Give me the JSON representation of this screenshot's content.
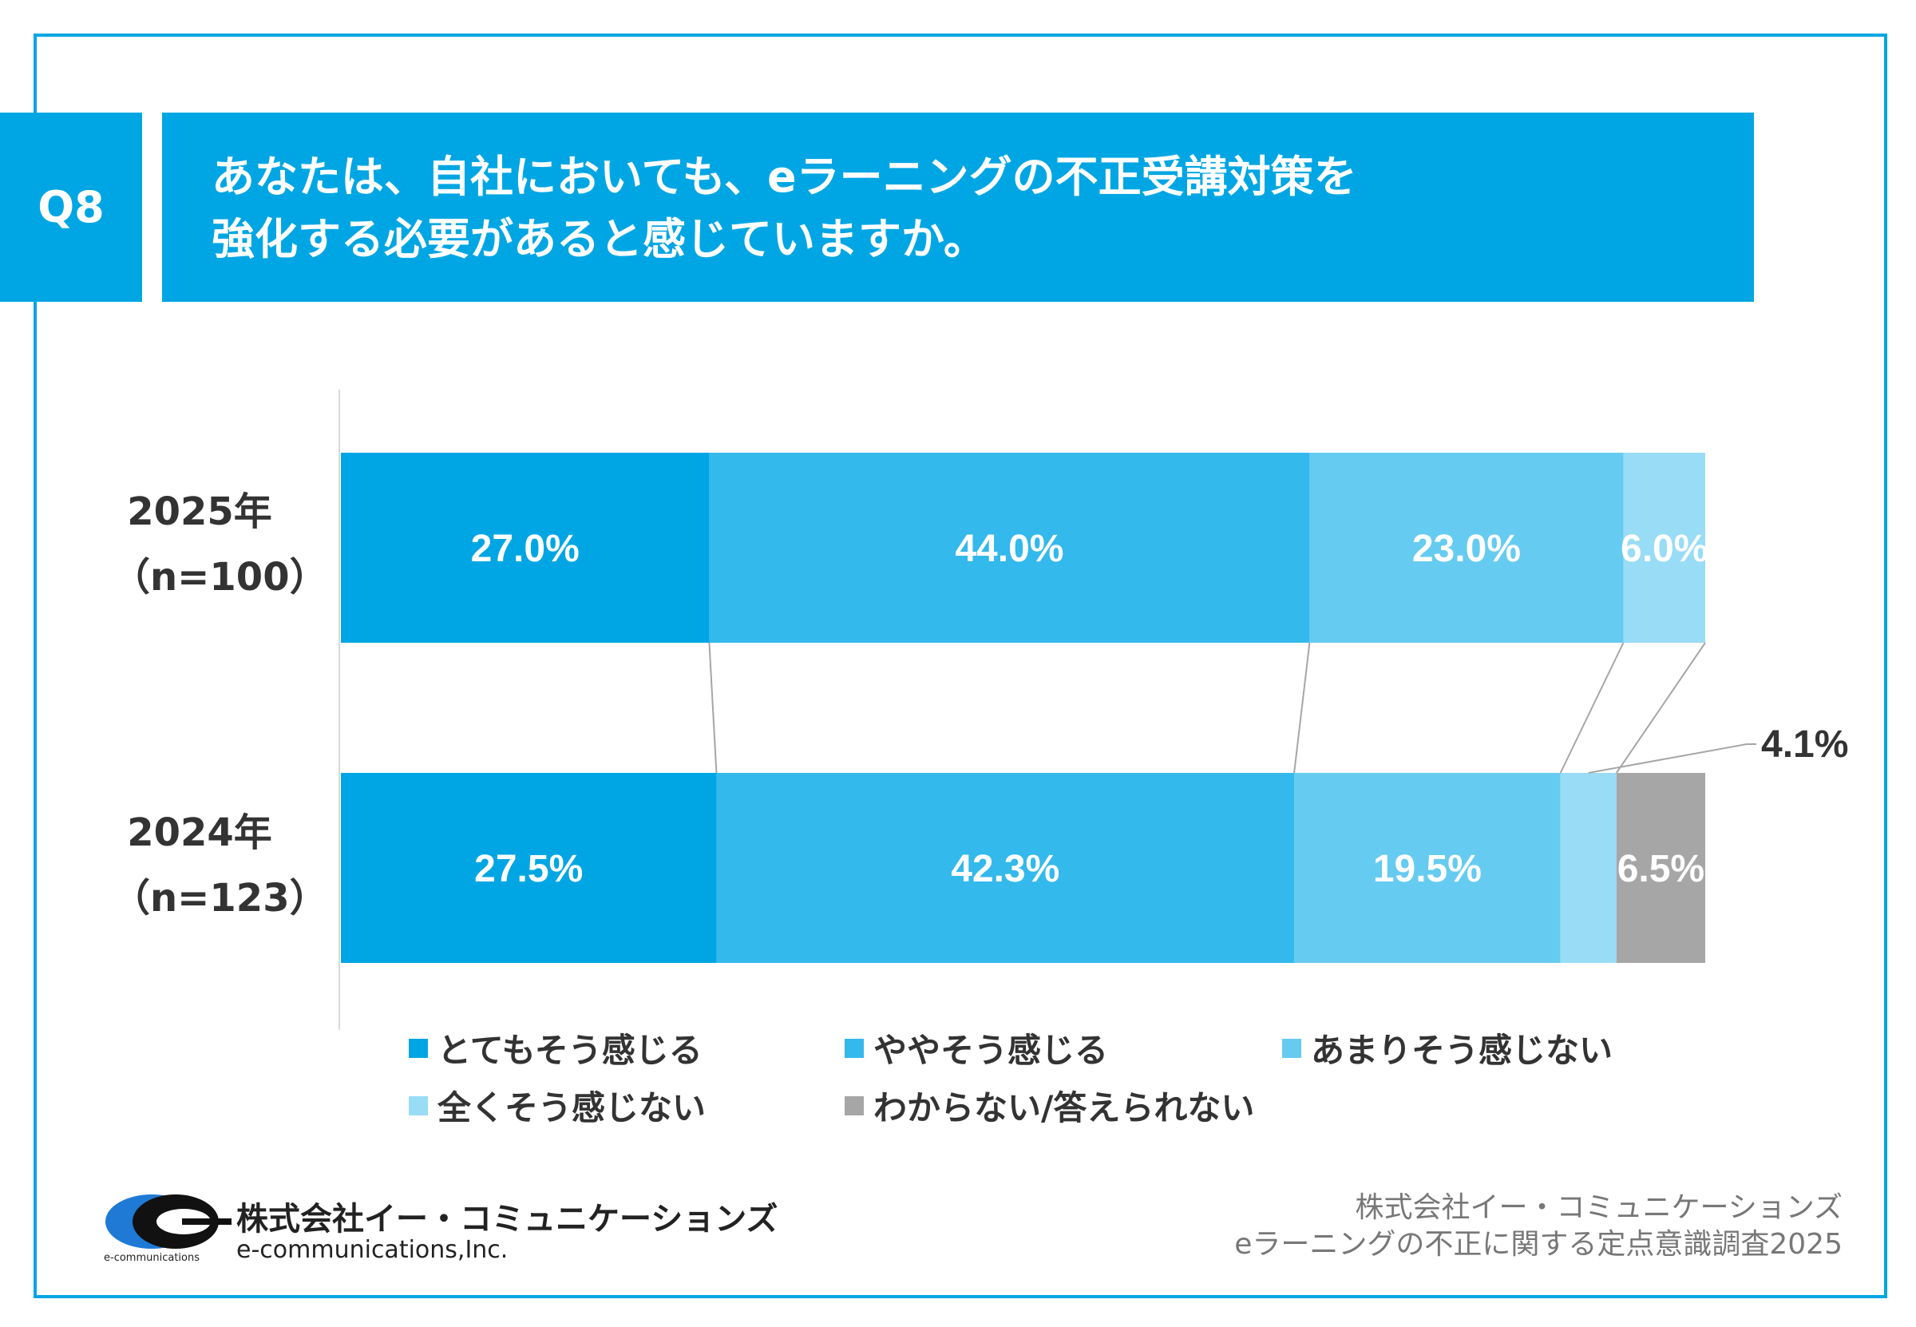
{
  "question": {
    "tag": "Q8",
    "title_line1": "あなたは、自社においても、eラーニングの不正受講対策を",
    "title_line2": "強化する必要があると感じていますか。"
  },
  "chart_data": {
    "type": "bar",
    "orientation": "horizontal",
    "stacked": true,
    "percent_stacked": true,
    "categories": [
      {
        "year": "2025年",
        "n": "（n=100）"
      },
      {
        "year": "2024年",
        "n": "（n=123）"
      }
    ],
    "series": [
      {
        "name": "とてもそう感じる",
        "color": "#00a6e3",
        "values": [
          27.0,
          27.5
        ],
        "labels": [
          "27.0%",
          "27.5%"
        ]
      },
      {
        "name": "ややそう感じる",
        "color": "#33b9eb",
        "values": [
          44.0,
          42.3
        ],
        "labels": [
          "44.0%",
          "42.3%"
        ]
      },
      {
        "name": "あまりそう感じない",
        "color": "#66cbf0",
        "values": [
          23.0,
          19.5
        ],
        "labels": [
          "23.0%",
          "19.5%"
        ]
      },
      {
        "name": "全くそう感じない",
        "color": "#99dcf6",
        "values": [
          6.0,
          4.1
        ],
        "labels": [
          "6.0%",
          "4.1%"
        ]
      },
      {
        "name": "わからない/答えられない",
        "color": "#a6a6a6",
        "values": [
          0,
          6.5
        ],
        "labels": [
          "",
          "6.5%"
        ]
      }
    ],
    "series_lines": true,
    "legend": "bottom"
  },
  "logo": {
    "company_jp": "株式会社イー・コミュニケーションズ",
    "company_en": "e-communications,Inc.",
    "small": "e-communications"
  },
  "source": {
    "line1": "株式会社イー・コミュニケーションズ",
    "line2": "eラーニングの不正に関する定点意識調査2025"
  }
}
